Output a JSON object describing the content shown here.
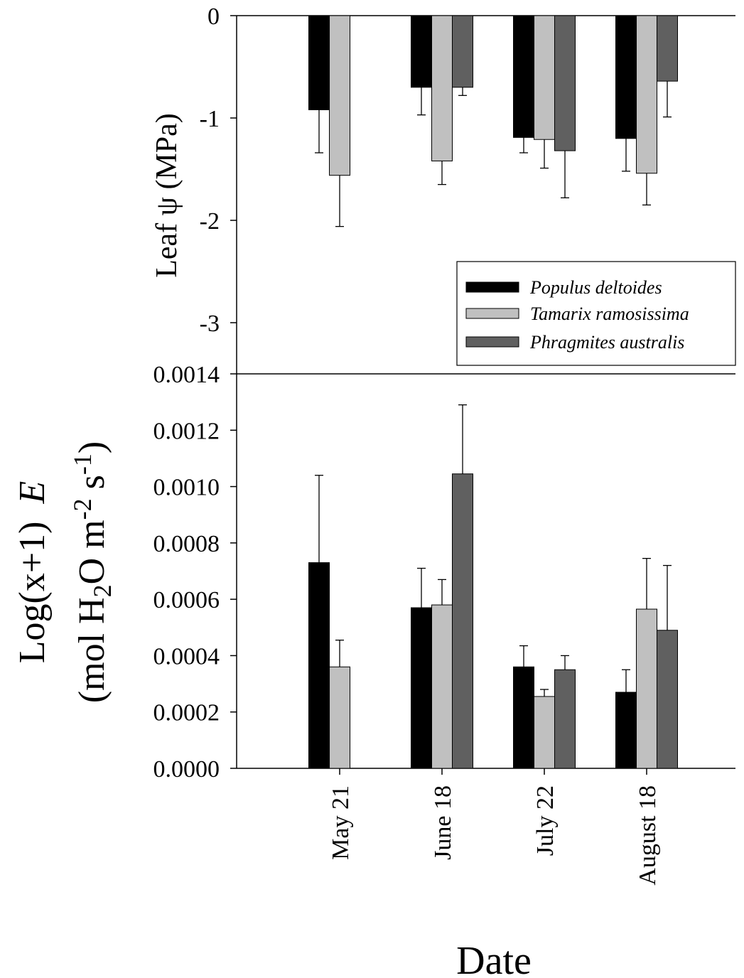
{
  "chart_data": [
    {
      "type": "bar",
      "ylabel": "Leaf ψ (MPa)",
      "ylim": [
        -3.5,
        0
      ],
      "yticks": [
        "0",
        "-1",
        "-2",
        "-3"
      ],
      "categories": [
        "May 21",
        "June 18",
        "July 22",
        "August 18"
      ],
      "series": [
        {
          "name": "Populus deltoides",
          "color": "#000000",
          "values": [
            -0.92,
            -0.7,
            -1.19,
            -1.2
          ],
          "errors": [
            0.42,
            0.27,
            0.15,
            0.32
          ]
        },
        {
          "name": "Tamarix ramosissima",
          "color": "#c0c0c0",
          "values": [
            -1.56,
            -1.42,
            -1.21,
            -1.54
          ],
          "errors": [
            0.5,
            0.23,
            0.28,
            0.31
          ]
        },
        {
          "name": "Phragmites australis",
          "color": "#606060",
          "values": [
            null,
            -0.7,
            -1.32,
            -0.64
          ],
          "errors": [
            null,
            0.08,
            0.46,
            0.35
          ]
        }
      ],
      "legend_position": "bottom-right"
    },
    {
      "type": "bar",
      "ylabel_line1": "Log(x+1)",
      "ylabel_var": "E",
      "ylabel_line2_prefix": "(mol H",
      "ylabel_sub": "2",
      "ylabel_line2_mid": "O m",
      "ylabel_sup1": "-2",
      "ylabel_mid2": " s",
      "ylabel_sup2": "-1",
      "ylabel_close": ")",
      "xlabel": "Date",
      "ylim": [
        0,
        0.0014
      ],
      "yticks": [
        "0.0000",
        "0.0002",
        "0.0004",
        "0.0006",
        "0.0008",
        "0.0010",
        "0.0012",
        "0.0014"
      ],
      "categories": [
        "May 21",
        "June 18",
        "July 22",
        "August 18"
      ],
      "series": [
        {
          "name": "Populus deltoides",
          "color": "#000000",
          "values": [
            0.00073,
            0.00057,
            0.00036,
            0.00027
          ],
          "errors": [
            0.00031,
            0.00014,
            7.5e-05,
            8e-05
          ]
        },
        {
          "name": "Tamarix ramosissima",
          "color": "#c0c0c0",
          "values": [
            0.00036,
            0.00058,
            0.000255,
            0.000565
          ],
          "errors": [
            9.5e-05,
            9e-05,
            2.5e-05,
            0.00018
          ]
        },
        {
          "name": "Phragmites australis",
          "color": "#606060",
          "values": [
            null,
            0.001045,
            0.00035,
            0.00049
          ],
          "errors": [
            null,
            0.000245,
            5e-05,
            0.00023
          ]
        }
      ]
    }
  ]
}
